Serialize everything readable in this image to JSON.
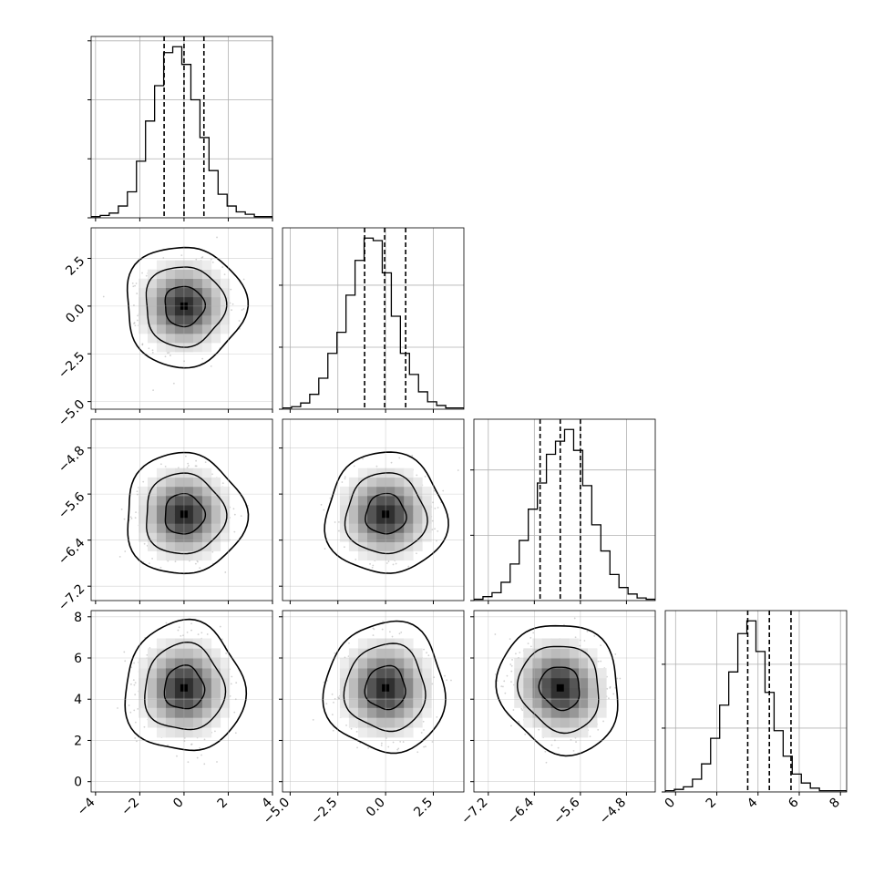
{
  "chart_data": {
    "type": "corner",
    "title": "",
    "params": [
      {
        "ticks": [
          -4,
          -2,
          0,
          2,
          4
        ],
        "tick_labels": [
          "−4",
          "−2",
          "0",
          "2",
          "4"
        ],
        "range": [
          -4.2,
          4.0
        ],
        "quantiles": [
          -0.9,
          0.0,
          0.9
        ],
        "hist_counts": [
          1,
          2,
          4,
          10,
          22,
          48,
          82,
          112,
          140,
          145,
          130,
          100,
          68,
          40,
          20,
          10,
          5,
          3,
          1,
          1
        ]
      },
      {
        "ticks": [
          -5.0,
          -2.5,
          0.0,
          2.5
        ],
        "tick_labels": [
          "−5.0",
          "−2.5",
          "0.0",
          "2.5"
        ],
        "range": [
          -5.4,
          4.1
        ],
        "quantiles": [
          -1.1,
          -0.05,
          1.05
        ],
        "hist_counts": [
          1,
          2,
          5,
          12,
          25,
          45,
          62,
          92,
          120,
          138,
          136,
          110,
          75,
          45,
          28,
          14,
          6,
          3,
          1,
          1
        ]
      },
      {
        "ticks": [
          -7.2,
          -6.4,
          -5.6,
          -4.8
        ],
        "tick_labels": [
          "−7.2",
          "−6.4",
          "−5.6",
          "−4.8"
        ],
        "range": [
          -7.45,
          -4.3
        ],
        "quantiles": [
          -6.3,
          -5.95,
          -5.6
        ],
        "hist_counts": [
          1,
          3,
          6,
          14,
          28,
          46,
          70,
          90,
          112,
          122,
          131,
          115,
          88,
          58,
          38,
          20,
          10,
          5,
          2,
          1
        ]
      },
      {
        "ticks": [
          0,
          2,
          4,
          6,
          8
        ],
        "tick_labels": [
          "0",
          "2",
          "4",
          "6",
          "8"
        ],
        "range": [
          -0.5,
          8.3
        ],
        "quantiles": [
          3.5,
          4.55,
          5.6
        ],
        "hist_counts": [
          1,
          2,
          4,
          10,
          22,
          42,
          68,
          94,
          124,
          134,
          110,
          78,
          48,
          28,
          14,
          7,
          3,
          1,
          1,
          1
        ]
      }
    ],
    "truth": [
      0.0,
      0.0,
      -5.95,
      4.55
    ],
    "sigma": [
      0.9,
      1.05,
      0.35,
      1.05
    ],
    "correlations": [
      [
        1,
        0,
        0,
        0
      ],
      [
        0,
        1,
        0,
        0
      ],
      [
        0,
        0,
        1,
        -0.1
      ],
      [
        0,
        0,
        -0.1,
        1
      ]
    ],
    "levels": [
      0.393,
      0.865,
      0.989
    ],
    "hist_bins": 20,
    "grid": true,
    "legend": "none"
  }
}
